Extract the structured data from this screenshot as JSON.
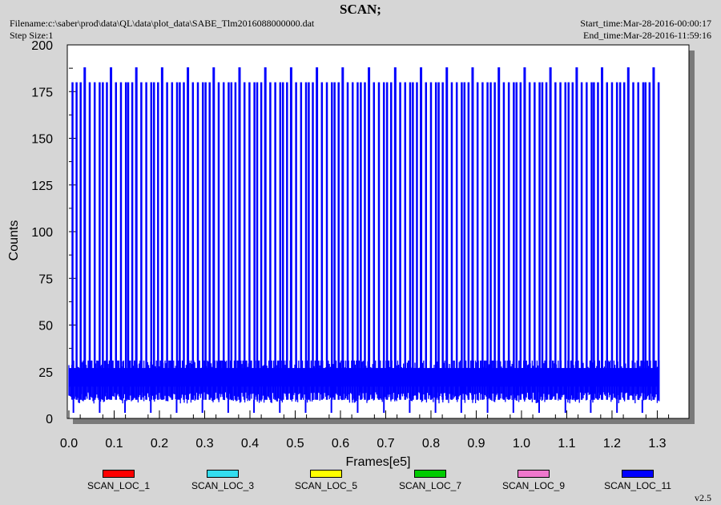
{
  "header": {
    "title": "SCAN;",
    "filename": "Filename:c:\\saber\\prod\\data\\QL\\data\\plot_data\\SABE_Tlm2016088000000.dat",
    "step_size": "Step Size:1",
    "start_time": "Start_time:Mar-28-2016-00:00:17",
    "end_time": "End_time:Mar-28-2016-11:59:16"
  },
  "version": "v2.5",
  "chart_data": {
    "type": "line",
    "title": "SCAN;",
    "xlabel": "Frames[e5]",
    "ylabel": "Counts",
    "xlim": [
      0.0,
      1.37
    ],
    "ylim": [
      0,
      200
    ],
    "x_ticks": [
      "0.0",
      "0.1",
      "0.2",
      "0.3",
      "0.4",
      "0.5",
      "0.6",
      "0.7",
      "0.8",
      "0.9",
      "1.0",
      "1.1",
      "1.2",
      "1.3"
    ],
    "y_ticks": [
      "0",
      "25",
      "50",
      "75",
      "100",
      "125",
      "150",
      "175",
      "200"
    ],
    "legend_placement": "bottom",
    "series": [
      {
        "name": "SCAN_LOC_1",
        "color": "#ff0000"
      },
      {
        "name": "SCAN_LOC_3",
        "color": "#33ddee"
      },
      {
        "name": "SCAN_LOC_5",
        "color": "#ffff00"
      },
      {
        "name": "SCAN_LOC_7",
        "color": "#00cc00"
      },
      {
        "name": "SCAN_LOC_9",
        "color": "#ee77cc"
      },
      {
        "name": "SCAN_LOC_11",
        "color": "#0000ff",
        "baseline_band": [
          10,
          31
        ],
        "baseline_low_spikes": 3,
        "peaks_188_x": [
          0.035,
          0.093,
          0.149,
          0.206,
          0.263,
          0.32,
          0.377,
          0.434,
          0.491,
          0.548,
          0.605,
          0.663,
          0.721,
          0.778,
          0.835,
          0.892,
          0.95,
          1.007,
          1.064,
          1.122,
          1.178,
          1.236,
          1.292
        ],
        "peak_high_value": 188,
        "peak_low_value": 180,
        "x_end": 1.305
      }
    ]
  }
}
